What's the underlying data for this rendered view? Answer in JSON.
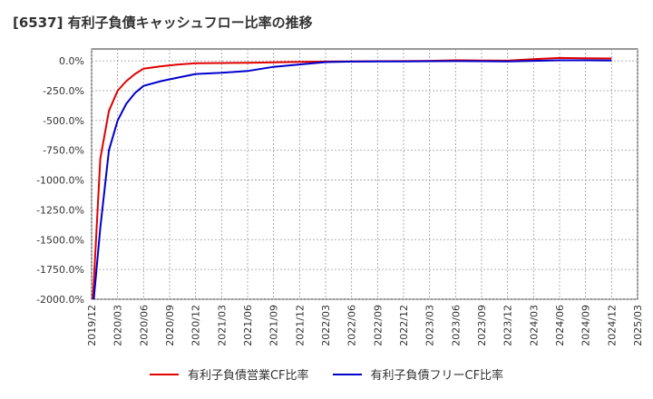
{
  "title": "[6537]  有利子負債キャッシュフロー比率の推移",
  "chart_data": {
    "type": "line",
    "title": "[6537]  有利子負債キャッシュフロー比率の推移",
    "xlabel": "",
    "ylabel": "",
    "ylim": [
      -2000,
      100
    ],
    "y_ticks": [
      "0.0%",
      "-250.0%",
      "-500.0%",
      "-750.0%",
      "-1000.0%",
      "-1250.0%",
      "-1500.0%",
      "-1750.0%",
      "-2000.0%"
    ],
    "y_tick_values": [
      0,
      -250,
      -500,
      -750,
      -1000,
      -1250,
      -1500,
      -1750,
      -2000
    ],
    "x_ticks": [
      "2019/12",
      "2020/03",
      "2020/06",
      "2020/09",
      "2020/12",
      "2021/03",
      "2021/06",
      "2021/09",
      "2021/12",
      "2022/03",
      "2022/06",
      "2022/09",
      "2022/12",
      "2023/03",
      "2023/06",
      "2023/09",
      "2023/12",
      "2024/03",
      "2024/06",
      "2024/09",
      "2024/12",
      "2025/03"
    ],
    "grid": true,
    "legend_position": "bottom",
    "series": [
      {
        "name": "有利子負債営業CF比率",
        "color": "#e00000",
        "x": [
          "2019/12",
          "2020/01",
          "2020/02",
          "2020/03",
          "2020/04",
          "2020/05",
          "2020/06",
          "2020/08",
          "2020/10",
          "2020/12",
          "2021/03",
          "2021/06",
          "2021/09",
          "2021/12",
          "2022/03",
          "2022/06",
          "2022/09",
          "2022/12",
          "2023/03",
          "2023/06",
          "2023/09",
          "2023/12",
          "2024/03",
          "2024/06",
          "2024/09",
          "2024/12"
        ],
        "values": [
          -2200,
          -820,
          -420,
          -250,
          -170,
          -110,
          -65,
          -45,
          -30,
          -20,
          -18,
          -16,
          -12,
          -8,
          -6,
          -4,
          -3,
          -2,
          0,
          5,
          3,
          2,
          15,
          25,
          22,
          20
        ]
      },
      {
        "name": "有利子負債フリーCF比率",
        "color": "#0000cc",
        "x": [
          "2019/12",
          "2020/01",
          "2020/02",
          "2020/03",
          "2020/04",
          "2020/05",
          "2020/06",
          "2020/08",
          "2020/10",
          "2020/12",
          "2021/03",
          "2021/06",
          "2021/09",
          "2021/12",
          "2022/03",
          "2022/06",
          "2022/09",
          "2022/12",
          "2023/03",
          "2023/06",
          "2023/09",
          "2023/12",
          "2024/03",
          "2024/06",
          "2024/09",
          "2024/12"
        ],
        "values": [
          -2200,
          -1400,
          -750,
          -500,
          -360,
          -270,
          -210,
          -170,
          -140,
          -110,
          -100,
          -85,
          -50,
          -30,
          -10,
          -6,
          -5,
          -4,
          -3,
          -2,
          -3,
          -4,
          0,
          5,
          5,
          3
        ]
      }
    ]
  }
}
